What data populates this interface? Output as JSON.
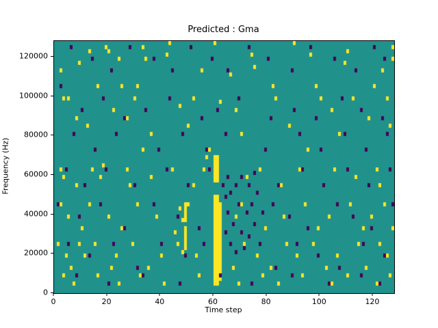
{
  "chart_data": {
    "type": "heatmap",
    "title": "Predicted : Gma",
    "xlabel": "Time step",
    "ylabel": "Frequency (Hz)",
    "xlim": [
      0,
      128
    ],
    "ylim": [
      0,
      128000
    ],
    "x_ticks": [
      0,
      20,
      40,
      60,
      80,
      100,
      120
    ],
    "y_ticks": [
      0,
      20000,
      40000,
      60000,
      80000,
      100000,
      120000
    ],
    "grid": false,
    "legend": "none",
    "colors": {
      "background": "#21918c",
      "high": "#fde725",
      "low": "#440154"
    },
    "cell": {
      "t_bins": 128,
      "f_bins": 64,
      "f_unit_khz": 2
    },
    "yellow_bands": [
      {
        "t": 60,
        "f_from": 4,
        "f_to": 50
      },
      {
        "t": 60,
        "f_from": 56,
        "f_to": 70
      },
      {
        "t": 61,
        "f_from": 4,
        "f_to": 50
      },
      {
        "t": 61,
        "f_from": 56,
        "f_to": 70
      },
      {
        "t": 62,
        "f_from": 6,
        "f_to": 46
      },
      {
        "t": 49,
        "f_from": 22,
        "f_to": 34
      },
      {
        "t": 49,
        "f_from": 36,
        "f_to": 46
      }
    ],
    "yellow_cells": [
      [
        2,
        112
      ],
      [
        3,
        98
      ],
      [
        5,
        98
      ],
      [
        9,
        116
      ],
      [
        13,
        122
      ],
      [
        16,
        104
      ],
      [
        19,
        124
      ],
      [
        20,
        122
      ],
      [
        24,
        118
      ],
      [
        25,
        104
      ],
      [
        30,
        98
      ],
      [
        31,
        104
      ],
      [
        33,
        124
      ],
      [
        34,
        118
      ],
      [
        42,
        120
      ],
      [
        43,
        126
      ],
      [
        47,
        94
      ],
      [
        52,
        98
      ],
      [
        55,
        112
      ],
      [
        60,
        126
      ],
      [
        62,
        96
      ],
      [
        66,
        110
      ],
      [
        74,
        120
      ],
      [
        75,
        114
      ],
      [
        82,
        104
      ],
      [
        83,
        98
      ],
      [
        90,
        126
      ],
      [
        96,
        120
      ],
      [
        98,
        104
      ],
      [
        100,
        98
      ],
      [
        104,
        92
      ],
      [
        109,
        116
      ],
      [
        110,
        122
      ],
      [
        112,
        98
      ],
      [
        120,
        104
      ],
      [
        123,
        112
      ],
      [
        125,
        98
      ],
      [
        127,
        124
      ],
      [
        127,
        118
      ],
      [
        8,
        88
      ],
      [
        12,
        84
      ],
      [
        22,
        92
      ],
      [
        27,
        88
      ],
      [
        33,
        72
      ],
      [
        36,
        80
      ],
      [
        50,
        84
      ],
      [
        58,
        72
      ],
      [
        68,
        92
      ],
      [
        70,
        80
      ],
      [
        88,
        84
      ],
      [
        95,
        72
      ],
      [
        107,
        80
      ],
      [
        118,
        88
      ],
      [
        126,
        84
      ],
      [
        2,
        62
      ],
      [
        3,
        58
      ],
      [
        8,
        54
      ],
      [
        14,
        62
      ],
      [
        17,
        58
      ],
      [
        18,
        64
      ],
      [
        27,
        62
      ],
      [
        28,
        54
      ],
      [
        36,
        58
      ],
      [
        44,
        62
      ],
      [
        52,
        54
      ],
      [
        56,
        62
      ],
      [
        57,
        68
      ],
      [
        72,
        58
      ],
      [
        77,
        62
      ],
      [
        85,
        54
      ],
      [
        92,
        62
      ],
      [
        101,
        54
      ],
      [
        105,
        62
      ],
      [
        113,
        58
      ],
      [
        121,
        62
      ],
      [
        122,
        54
      ],
      [
        2,
        44
      ],
      [
        5,
        38
      ],
      [
        10,
        32
      ],
      [
        13,
        44
      ],
      [
        20,
        38
      ],
      [
        25,
        32
      ],
      [
        31,
        44
      ],
      [
        38,
        38
      ],
      [
        45,
        30
      ],
      [
        47,
        42
      ],
      [
        48,
        20
      ],
      [
        48,
        36
      ],
      [
        50,
        44
      ],
      [
        68,
        38
      ],
      [
        70,
        44
      ],
      [
        79,
        32
      ],
      [
        86,
        38
      ],
      [
        94,
        44
      ],
      [
        99,
        32
      ],
      [
        103,
        38
      ],
      [
        111,
        44
      ],
      [
        116,
        32
      ],
      [
        119,
        38
      ],
      [
        124,
        44
      ],
      [
        127,
        32
      ],
      [
        1,
        24
      ],
      [
        4,
        18
      ],
      [
        6,
        12
      ],
      [
        9,
        24
      ],
      [
        11,
        18
      ],
      [
        15,
        24
      ],
      [
        21,
        12
      ],
      [
        23,
        18
      ],
      [
        29,
        24
      ],
      [
        35,
        12
      ],
      [
        40,
        18
      ],
      [
        46,
        24
      ],
      [
        53,
        18
      ],
      [
        67,
        12
      ],
      [
        71,
        24
      ],
      [
        76,
        18
      ],
      [
        81,
        12
      ],
      [
        87,
        24
      ],
      [
        91,
        18
      ],
      [
        97,
        24
      ],
      [
        102,
        12
      ],
      [
        106,
        18
      ],
      [
        114,
        24
      ],
      [
        117,
        12
      ],
      [
        122,
        24
      ],
      [
        125,
        18
      ],
      [
        3,
        8
      ],
      [
        7,
        4
      ],
      [
        16,
        8
      ],
      [
        24,
        4
      ],
      [
        32,
        8
      ],
      [
        41,
        4
      ],
      [
        54,
        8
      ],
      [
        69,
        4
      ],
      [
        78,
        8
      ],
      [
        84,
        4
      ],
      [
        93,
        8
      ],
      [
        104,
        4
      ],
      [
        110,
        8
      ],
      [
        121,
        4
      ],
      [
        126,
        8
      ]
    ],
    "purple_cells": [
      [
        2,
        104
      ],
      [
        6,
        124
      ],
      [
        14,
        118
      ],
      [
        21,
        112
      ],
      [
        28,
        124
      ],
      [
        37,
        118
      ],
      [
        44,
        112
      ],
      [
        51,
        124
      ],
      [
        59,
        118
      ],
      [
        65,
        112
      ],
      [
        73,
        124
      ],
      [
        80,
        118
      ],
      [
        89,
        112
      ],
      [
        96,
        124
      ],
      [
        105,
        118
      ],
      [
        113,
        112
      ],
      [
        120,
        124
      ],
      [
        124,
        118
      ],
      [
        10,
        92
      ],
      [
        18,
        98
      ],
      [
        26,
        88
      ],
      [
        34,
        92
      ],
      [
        43,
        98
      ],
      [
        55,
        88
      ],
      [
        61,
        92
      ],
      [
        69,
        98
      ],
      [
        81,
        88
      ],
      [
        90,
        92
      ],
      [
        98,
        88
      ],
      [
        108,
        98
      ],
      [
        115,
        92
      ],
      [
        123,
        88
      ],
      [
        7,
        80
      ],
      [
        15,
        72
      ],
      [
        23,
        80
      ],
      [
        39,
        72
      ],
      [
        48,
        80
      ],
      [
        57,
        72
      ],
      [
        64,
        80
      ],
      [
        79,
        72
      ],
      [
        92,
        80
      ],
      [
        100,
        72
      ],
      [
        109,
        80
      ],
      [
        117,
        72
      ],
      [
        125,
        80
      ],
      [
        4,
        62
      ],
      [
        11,
        54
      ],
      [
        19,
        62
      ],
      [
        30,
        54
      ],
      [
        42,
        62
      ],
      [
        50,
        54
      ],
      [
        58,
        62
      ],
      [
        84,
        54
      ],
      [
        93,
        62
      ],
      [
        101,
        54
      ],
      [
        110,
        62
      ],
      [
        118,
        54
      ],
      [
        126,
        62
      ],
      [
        63,
        54
      ],
      [
        64,
        48
      ],
      [
        64,
        30
      ],
      [
        65,
        58
      ],
      [
        65,
        40
      ],
      [
        66,
        24
      ],
      [
        66,
        50
      ],
      [
        67,
        34
      ],
      [
        68,
        54
      ],
      [
        68,
        20
      ],
      [
        69,
        44
      ],
      [
        70,
        30
      ],
      [
        70,
        58
      ],
      [
        71,
        22
      ],
      [
        72,
        40
      ],
      [
        73,
        54
      ],
      [
        73,
        28
      ],
      [
        74,
        44
      ],
      [
        75,
        34
      ],
      [
        75,
        60
      ],
      [
        76,
        50
      ],
      [
        77,
        24
      ],
      [
        78,
        40
      ],
      [
        1,
        44
      ],
      [
        9,
        38
      ],
      [
        17,
        44
      ],
      [
        26,
        32
      ],
      [
        37,
        44
      ],
      [
        46,
        38
      ],
      [
        54,
        32
      ],
      [
        82,
        44
      ],
      [
        88,
        38
      ],
      [
        95,
        32
      ],
      [
        106,
        44
      ],
      [
        112,
        38
      ],
      [
        119,
        32
      ],
      [
        127,
        44
      ],
      [
        5,
        24
      ],
      [
        13,
        18
      ],
      [
        22,
        24
      ],
      [
        31,
        12
      ],
      [
        40,
        24
      ],
      [
        49,
        18
      ],
      [
        56,
        24
      ],
      [
        83,
        12
      ],
      [
        91,
        24
      ],
      [
        99,
        18
      ],
      [
        107,
        12
      ],
      [
        116,
        24
      ],
      [
        124,
        18
      ],
      [
        8,
        8
      ],
      [
        20,
        4
      ],
      [
        33,
        8
      ],
      [
        47,
        4
      ],
      [
        62,
        8
      ],
      [
        74,
        4
      ],
      [
        89,
        8
      ],
      [
        103,
        4
      ],
      [
        115,
        8
      ],
      [
        122,
        4
      ]
    ]
  }
}
